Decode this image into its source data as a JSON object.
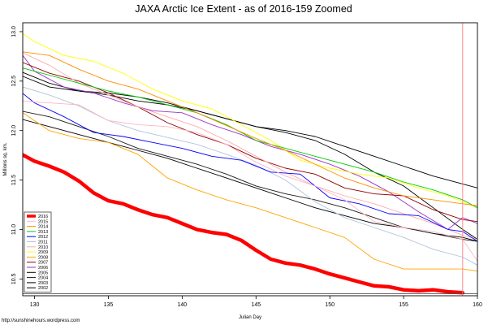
{
  "credit": "http://sunshinehours.wordpress.com",
  "colors": {
    "background": "#ffffff",
    "frame": "#000000",
    "marker": "#ff8080"
  },
  "chart_data": {
    "type": "line",
    "title": "JAXA Arctic Ice Extent - as of 2016-159 Zoomed",
    "xlabel": "Julian Day",
    "ylabel": "Millions sq. km.",
    "xlim": [
      129.2,
      160.0
    ],
    "ylim": [
      10.33,
      13.09
    ],
    "x_ticks": [
      130,
      135,
      140,
      145,
      150,
      155,
      160
    ],
    "y_ticks": [
      10.5,
      11.0,
      11.5,
      12.0,
      12.5,
      13.0
    ],
    "grid": false,
    "legend_position": "bottom-left",
    "marker_day": 159,
    "baseline_value": 10.35,
    "series": [
      {
        "name": "2016",
        "color": "#ff0000",
        "width": 4.5,
        "x": [
          129,
          130,
          131,
          132,
          133,
          134,
          135,
          136,
          137,
          138,
          139,
          140,
          141,
          142,
          143,
          144,
          145,
          146,
          147,
          148,
          149,
          150,
          151,
          152,
          153,
          154,
          155,
          156,
          157,
          158,
          159
        ],
        "y": [
          11.77,
          11.69,
          11.64,
          11.58,
          11.49,
          11.37,
          11.29,
          11.26,
          11.2,
          11.15,
          11.12,
          11.06,
          11.0,
          10.97,
          10.95,
          10.89,
          10.79,
          10.7,
          10.66,
          10.64,
          10.6,
          10.55,
          10.51,
          10.47,
          10.43,
          10.42,
          10.39,
          10.38,
          10.39,
          10.37,
          10.36
        ]
      },
      {
        "name": "2015",
        "color": "#ffb6c1",
        "width": 0.9,
        "x": [
          129,
          131,
          133,
          135,
          137,
          139,
          141,
          143,
          145,
          147,
          149,
          151,
          153,
          155,
          157,
          159,
          160
        ],
        "y": [
          12.3,
          12.28,
          12.26,
          12.1,
          12.06,
          12.04,
          11.98,
          11.86,
          11.68,
          11.54,
          11.44,
          11.3,
          11.08,
          11.02,
          10.98,
          10.9,
          10.68
        ]
      },
      {
        "name": "2014",
        "color": "#ff8c00",
        "width": 0.9,
        "x": [
          129,
          131,
          133,
          135,
          137,
          139,
          141,
          143,
          145,
          147,
          149,
          151,
          153,
          155,
          157,
          159,
          160
        ],
        "y": [
          12.8,
          12.76,
          12.62,
          12.5,
          12.42,
          12.3,
          12.18,
          12.05,
          11.92,
          11.8,
          11.66,
          11.52,
          11.42,
          11.34,
          11.3,
          11.26,
          11.24
        ]
      },
      {
        "name": "2013",
        "color": "#00c800",
        "width": 0.9,
        "x": [
          129,
          131,
          133,
          135,
          137,
          139,
          141,
          143,
          145,
          147,
          149,
          151,
          153,
          155,
          157,
          159,
          160
        ],
        "y": [
          12.64,
          12.56,
          12.48,
          12.4,
          12.34,
          12.26,
          12.18,
          12.06,
          11.9,
          11.82,
          11.74,
          11.66,
          11.58,
          11.48,
          11.4,
          11.3,
          11.22
        ]
      },
      {
        "name": "2012",
        "color": "#0000ff",
        "width": 0.9,
        "x": [
          129,
          130,
          132,
          134,
          136,
          138,
          140,
          142,
          144,
          146,
          148,
          150,
          152,
          154,
          156,
          158,
          159,
          160
        ],
        "y": [
          12.4,
          12.28,
          12.14,
          11.98,
          11.94,
          11.88,
          11.82,
          11.74,
          11.7,
          11.58,
          11.56,
          11.32,
          11.26,
          11.16,
          11.14,
          11.0,
          10.98,
          10.88
        ]
      },
      {
        "name": "2011",
        "color": "#b0c4de",
        "width": 0.9,
        "x": [
          129,
          131,
          133,
          135,
          137,
          139,
          141,
          143,
          145,
          147,
          149,
          151,
          153,
          155,
          157,
          159,
          160
        ],
        "y": [
          12.45,
          12.36,
          12.25,
          12.1,
          12.0,
          11.93,
          11.86,
          11.76,
          11.65,
          11.5,
          11.28,
          11.12,
          11.02,
          10.92,
          10.8,
          10.72,
          10.64
        ]
      },
      {
        "name": "2010",
        "color": "#ffaaaa",
        "width": 0.9,
        "x": [
          129,
          131,
          133,
          135,
          137,
          139,
          141,
          143,
          145,
          147,
          149,
          151,
          153,
          155,
          157,
          159,
          160
        ],
        "y": [
          12.8,
          12.66,
          12.48,
          12.36,
          12.24,
          12.14,
          12.04,
          11.9,
          11.74,
          11.58,
          11.44,
          11.34,
          11.26,
          11.16,
          11.06,
          10.94,
          10.9
        ]
      },
      {
        "name": "2009",
        "color": "#ffff00",
        "width": 0.9,
        "x": [
          129,
          130,
          132,
          134,
          136,
          138,
          140,
          142,
          144,
          146,
          148,
          150,
          152,
          154,
          156,
          158,
          159,
          160
        ],
        "y": [
          13.0,
          12.9,
          12.76,
          12.7,
          12.58,
          12.42,
          12.3,
          12.22,
          12.06,
          11.9,
          11.7,
          11.62,
          11.56,
          11.52,
          11.42,
          11.34,
          11.28,
          11.22
        ]
      },
      {
        "name": "2008",
        "color": "#ffa500",
        "width": 0.9,
        "x": [
          129,
          131,
          133,
          135,
          137,
          139,
          141,
          143,
          145,
          147,
          149,
          151,
          153,
          155,
          157,
          159,
          160
        ],
        "y": [
          12.2,
          12.0,
          11.92,
          11.88,
          11.76,
          11.52,
          11.4,
          11.3,
          11.22,
          11.12,
          11.02,
          10.92,
          10.7,
          10.6,
          10.6,
          10.6,
          10.58
        ]
      },
      {
        "name": "2007",
        "color": "#8b0000",
        "width": 0.9,
        "x": [
          129,
          131,
          133,
          135,
          137,
          139,
          141,
          143,
          145,
          147,
          149,
          151,
          153,
          155,
          157,
          159,
          160
        ],
        "y": [
          12.7,
          12.58,
          12.5,
          12.38,
          12.24,
          12.08,
          11.96,
          11.86,
          11.72,
          11.62,
          11.56,
          11.42,
          11.36,
          11.34,
          11.2,
          11.1,
          11.08
        ]
      },
      {
        "name": "2006",
        "color": "#9932cc",
        "width": 0.9,
        "x": [
          129,
          130,
          132,
          134,
          136,
          138,
          140,
          142,
          144,
          146,
          148,
          150,
          152,
          154,
          156,
          158,
          159,
          160
        ],
        "y": [
          12.8,
          12.6,
          12.44,
          12.38,
          12.28,
          12.2,
          12.18,
          12.06,
          11.96,
          11.84,
          11.76,
          11.66,
          11.54,
          11.38,
          11.18,
          11.0,
          11.12,
          11.06
        ]
      },
      {
        "name": "2005",
        "color": "#000000",
        "width": 0.9,
        "x": [
          129,
          131,
          133,
          135,
          137,
          139,
          141,
          143,
          145,
          147,
          149,
          151,
          153,
          155,
          157,
          159,
          160
        ],
        "y": [
          12.6,
          12.48,
          12.4,
          12.38,
          12.34,
          12.28,
          12.2,
          12.12,
          12.04,
          11.98,
          11.9,
          11.76,
          11.58,
          11.44,
          11.22,
          11.0,
          10.9
        ]
      },
      {
        "name": "2004",
        "color": "#1a1a1a",
        "width": 0.9,
        "x": [
          129,
          131,
          133,
          135,
          137,
          139,
          141,
          143,
          145,
          147,
          149,
          151,
          153,
          155,
          157,
          159,
          160
        ],
        "y": [
          12.2,
          12.14,
          12.04,
          11.94,
          11.82,
          11.74,
          11.66,
          11.56,
          11.44,
          11.36,
          11.3,
          11.22,
          11.12,
          11.02,
          10.96,
          10.9,
          10.88
        ]
      },
      {
        "name": "2003",
        "color": "#000000",
        "width": 0.9,
        "x": [
          129,
          131,
          133,
          135,
          137,
          139,
          141,
          143,
          145,
          147,
          149,
          151,
          153,
          155,
          157,
          159,
          160
        ],
        "y": [
          12.12,
          12.04,
          11.96,
          11.88,
          11.8,
          11.72,
          11.62,
          11.52,
          11.42,
          11.32,
          11.22,
          11.14,
          11.06,
          11.02,
          10.96,
          10.92,
          10.88
        ]
      },
      {
        "name": "2002",
        "color": "#000000",
        "width": 0.9,
        "x": [
          129,
          131,
          133,
          135,
          137,
          139,
          141,
          143,
          145,
          147,
          149,
          151,
          153,
          155,
          157,
          159,
          160
        ],
        "y": [
          12.56,
          12.44,
          12.4,
          12.36,
          12.3,
          12.26,
          12.2,
          12.12,
          12.04,
          12.0,
          11.94,
          11.84,
          11.74,
          11.64,
          11.54,
          11.46,
          11.42
        ]
      }
    ]
  }
}
